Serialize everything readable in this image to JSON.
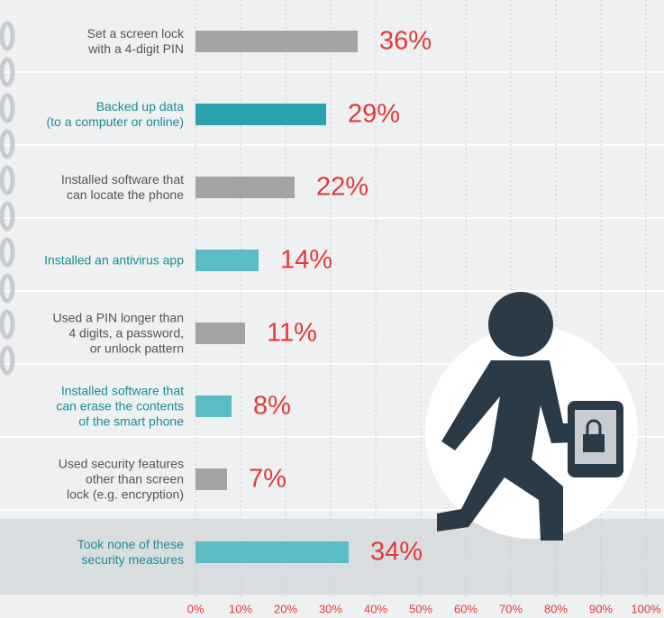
{
  "chart_data": {
    "type": "bar",
    "orientation": "horizontal",
    "categories": [
      "Set a screen lock\nwith a 4-digit PIN",
      "Backed up data\n(to a computer or online)",
      "Installed software that\ncan locate the phone",
      "Installed an antivirus app",
      "Used a PIN longer than\n4 digits, a password,\nor unlock pattern",
      "Installed software that\ncan erase the contents\nof the smart phone",
      "Used security features\nother than screen\nlock (e.g. encryption)",
      "Took none of these\nsecurity measures"
    ],
    "values": [
      36,
      29,
      22,
      14,
      11,
      8,
      7,
      34
    ],
    "value_labels": [
      "36%",
      "29%",
      "22%",
      "14%",
      "11%",
      "8%",
      "7%",
      "34%"
    ],
    "colors": [
      "#a4a4a4",
      "#2aa2ad",
      "#a4a4a4",
      "#5cbcc6",
      "#a4a4a4",
      "#5cbcc6",
      "#a4a4a4",
      "#5cbcc6"
    ],
    "label_colors": [
      "#555555",
      "#1b8c97",
      "#555555",
      "#1b8c97",
      "#555555",
      "#1b8c97",
      "#555555",
      "#1b8c97"
    ],
    "value_label_color": "#e23b3b",
    "xlim": [
      0,
      100
    ],
    "xticks": [
      {
        "value": 0,
        "label": "0%"
      },
      {
        "value": 10,
        "label": "10%"
      },
      {
        "value": 20,
        "label": "20%"
      },
      {
        "value": 30,
        "label": "30%"
      },
      {
        "value": 40,
        "label": "40%"
      },
      {
        "value": 50,
        "label": "50%"
      },
      {
        "value": 60,
        "label": "60%"
      },
      {
        "value": 70,
        "label": "70%"
      },
      {
        "value": 80,
        "label": "80%"
      },
      {
        "value": 90,
        "label": "90%"
      },
      {
        "value": 100,
        "label": "100%"
      }
    ],
    "grid": true
  }
}
